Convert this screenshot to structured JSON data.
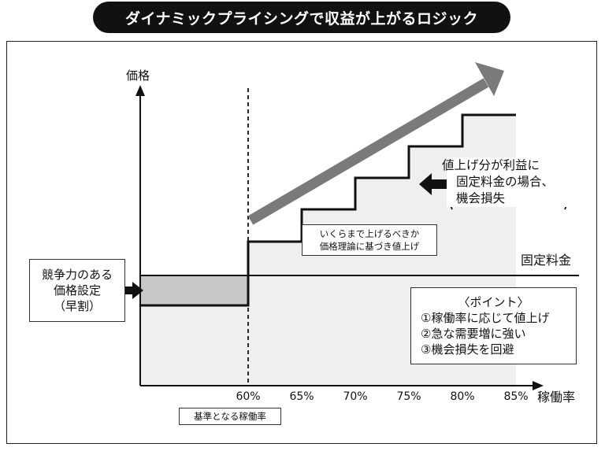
{
  "title": "ダイナミックプライシングで収益が上がるロジック",
  "y_axis_label": "価格",
  "x_axis_label": "稼働率",
  "x_ticks": [
    "60%",
    "65%",
    "70%",
    "75%",
    "80%",
    "85%"
  ],
  "fixed_cost_label": "固定料金",
  "left_box": {
    "line1": "競争力のある",
    "line2": "価格設定",
    "line3": "（早割）"
  },
  "note_box": {
    "line1": "いくらまで上げるべきか",
    "line2": "価格理論に基づき値上げ"
  },
  "profit_box": {
    "line1": "値上げ分が利益に",
    "line2": "固定料金の場合、",
    "line3": "機会損失"
  },
  "point_box": {
    "title": "〈ポイント〉",
    "items": [
      "①稼働率に応じて値上げ",
      "②急な需要増に強い",
      "③機会損失を回避"
    ]
  },
  "baseline_label": "基準となる稼働率",
  "colors": {
    "banner": "#111111",
    "arrow": "#7a7a7a",
    "shade_light": "#efefef",
    "shade_dark": "#c8c8c8"
  }
}
